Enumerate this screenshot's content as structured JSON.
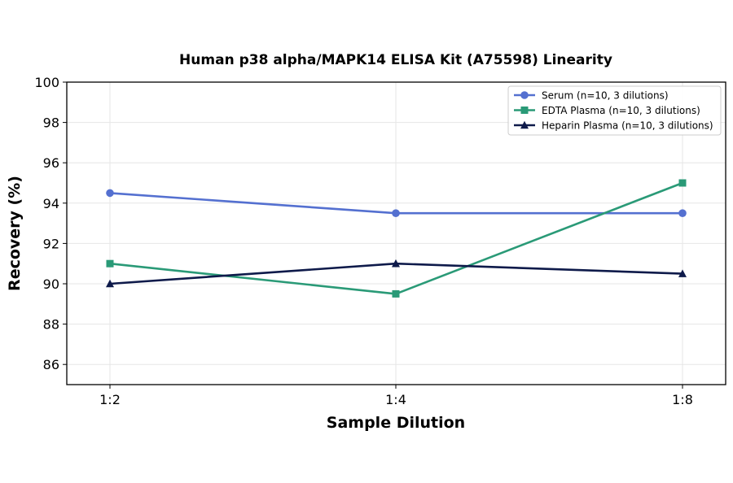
{
  "chart_data": {
    "type": "line",
    "title": "Human p38 alpha/MAPK14 ELISA Kit (A75598) Linearity",
    "xlabel": "Sample Dilution",
    "ylabel": "Recovery (%)",
    "categories": [
      "1:2",
      "1:4",
      "1:8"
    ],
    "ylim": [
      85,
      100
    ],
    "yticks": [
      86,
      88,
      90,
      92,
      94,
      96,
      98,
      100
    ],
    "grid": true,
    "legend_position": "top-right",
    "series": [
      {
        "name": "Serum (n=10, 3 dilutions)",
        "values": [
          94.5,
          93.5,
          93.5
        ],
        "color": "#5470d0",
        "marker": "circle"
      },
      {
        "name": "EDTA Plasma (n=10, 3 dilutions)",
        "values": [
          91.0,
          89.5,
          95.0
        ],
        "color": "#2a9a77",
        "marker": "square"
      },
      {
        "name": "Heparin Plasma (n=10, 3 dilutions)",
        "values": [
          90.0,
          91.0,
          90.5
        ],
        "color": "#0e1a4a",
        "marker": "triangle"
      }
    ]
  }
}
